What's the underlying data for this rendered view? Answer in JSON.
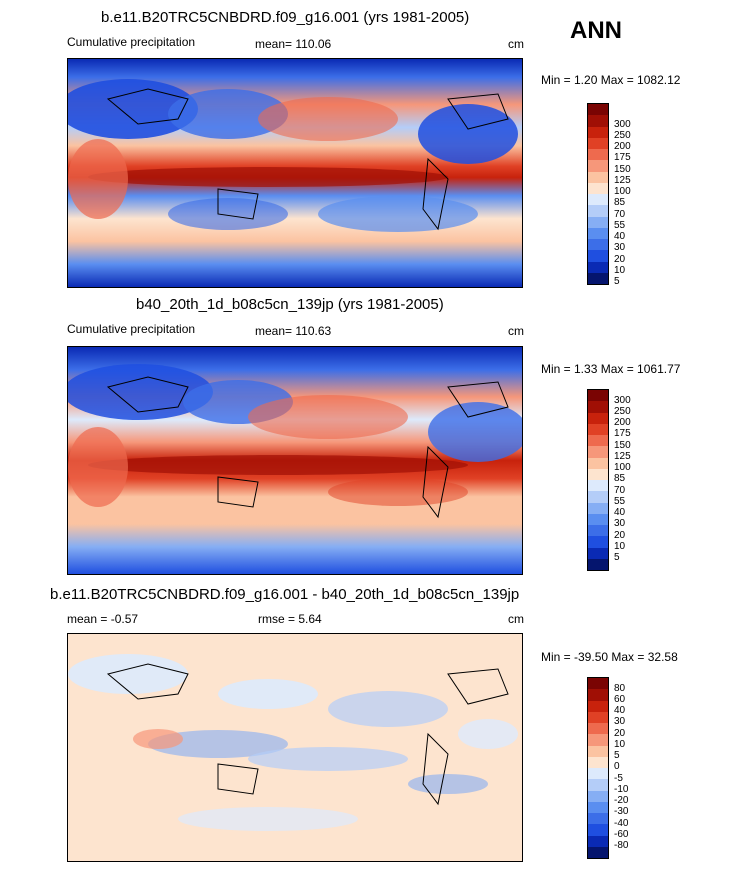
{
  "season": "ANN",
  "colors": {
    "precip": [
      "#05156e",
      "#0a2ab4",
      "#1f4fe0",
      "#3c6ee8",
      "#5a8ef0",
      "#86aef4",
      "#b4cdf8",
      "#ddeafc",
      "#fde4cf",
      "#fbc3a1",
      "#f6977a",
      "#ee6a4e",
      "#e04125",
      "#c8220c",
      "#a00f05",
      "#7a0403"
    ],
    "diff": [
      "#05156e",
      "#0a2ab4",
      "#1f4fe0",
      "#3c6ee8",
      "#5a8ef0",
      "#86aef4",
      "#b4cdf8",
      "#ddeafc",
      "#fde4cf",
      "#fbc3a1",
      "#f6977a",
      "#ee6a4e",
      "#e04125",
      "#c8220c",
      "#a00f05",
      "#7a0403"
    ]
  },
  "chart_data": [
    {
      "type": "heatmap",
      "title": "b.e11.B20TRC5CNBDRD.f09_g16.001 (yrs 1981-2005)",
      "left_label": "Cumulative precipitation",
      "mean_label": "mean= 110.06",
      "units": "cm",
      "minmax_label": "Min =   1.20 Max = 1082.12",
      "min": 1.2,
      "max": 1082.12,
      "mean": 110.06,
      "levels": [
        "300",
        "250",
        "200",
        "175",
        "150",
        "125",
        "100",
        "85",
        "70",
        "55",
        "40",
        "30",
        "20",
        "10",
        "5"
      ]
    },
    {
      "type": "heatmap",
      "title": "b40_20th_1d_b08c5cn_139jp (yrs 1981-2005)",
      "left_label": "Cumulative precipitation",
      "mean_label": "mean= 110.63",
      "units": "cm",
      "minmax_label": "Min =   1.33 Max = 1061.77",
      "min": 1.33,
      "max": 1061.77,
      "mean": 110.63,
      "levels": [
        "300",
        "250",
        "200",
        "175",
        "150",
        "125",
        "100",
        "85",
        "70",
        "55",
        "40",
        "30",
        "20",
        "10",
        "5"
      ]
    },
    {
      "type": "heatmap",
      "title": "b.e11.B20TRC5CNBDRD.f09_g16.001 - b40_20th_1d_b08c5cn_139jp",
      "left_label": "mean =  -0.57",
      "mean_label": "rmse =   5.64",
      "units": "cm",
      "minmax_label": "Min = -39.50 Max =  32.58",
      "min": -39.5,
      "max": 32.58,
      "mean": -0.57,
      "rmse": 5.64,
      "levels": [
        "80",
        "60",
        "40",
        "30",
        "20",
        "10",
        "5",
        "0",
        "-5",
        "-10",
        "-20",
        "-30",
        "-40",
        "-60",
        "-80"
      ]
    }
  ]
}
